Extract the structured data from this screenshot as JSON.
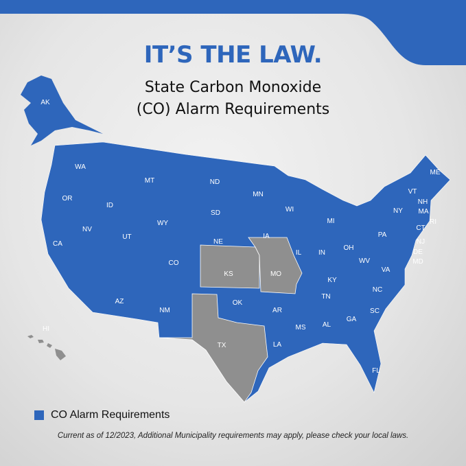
{
  "header": {
    "title": "IT’S THE LAW.",
    "subtitle_line1": "State Carbon Monoxide",
    "subtitle_line2": "(CO) Alarm Requirements"
  },
  "colors": {
    "required": "#2e66bb",
    "not_required": "#8f8f8f",
    "band": "#2e66bb"
  },
  "states_required": [
    "AK",
    "WA",
    "OR",
    "CA",
    "ID",
    "NV",
    "MT",
    "WY",
    "UT",
    "AZ",
    "CO",
    "NM",
    "ND",
    "SD",
    "NE",
    "OK",
    "MN",
    "IA",
    "AR",
    "LA",
    "WI",
    "IL",
    "MI",
    "IN",
    "OH",
    "KY",
    "TN",
    "MS",
    "AL",
    "GA",
    "FL",
    "SC",
    "NC",
    "VA",
    "WV",
    "PA",
    "NY",
    "VT",
    "NH",
    "ME",
    "MA",
    "RI",
    "CT",
    "NJ",
    "DE",
    "MD"
  ],
  "states_not_required": [
    "KS",
    "MO",
    "TX",
    "HI"
  ],
  "labels": {
    "AK": "AK",
    "WA": "WA",
    "OR": "OR",
    "CA": "CA",
    "ID": "ID",
    "NV": "NV",
    "MT": "MT",
    "WY": "WY",
    "UT": "UT",
    "AZ": "AZ",
    "CO": "CO",
    "NM": "NM",
    "ND": "ND",
    "SD": "SD",
    "NE": "NE",
    "KS": "KS",
    "OK": "OK",
    "TX": "TX",
    "MN": "MN",
    "IA": "IA",
    "MO": "MO",
    "AR": "AR",
    "LA": "LA",
    "WI": "WI",
    "IL": "IL",
    "MI": "MI",
    "IN": "IN",
    "OH": "OH",
    "KY": "KY",
    "TN": "TN",
    "MS": "MS",
    "AL": "AL",
    "GA": "GA",
    "FL": "FL",
    "SC": "SC",
    "NC": "NC",
    "VA": "VA",
    "WV": "WV",
    "PA": "PA",
    "NY": "NY",
    "VT": "VT",
    "NH": "NH",
    "ME": "ME",
    "MA": "MA",
    "RI": "RI",
    "CT": "CT",
    "NJ": "NJ",
    "DE": "DE",
    "MD": "MD",
    "HI": "HI"
  },
  "legend": {
    "label": "CO Alarm Requirements"
  },
  "footnote": "Current as of 12/2023, Additional Municipality requirements may apply, please check your local laws."
}
